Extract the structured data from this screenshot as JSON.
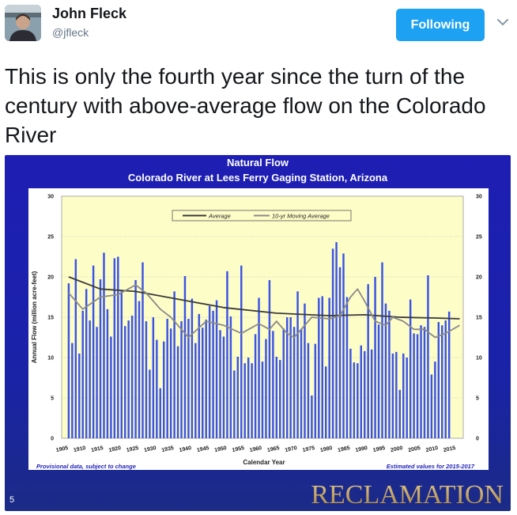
{
  "tweet": {
    "user_name": "John Fleck",
    "handle": "@jfleck",
    "follow_label": "Following",
    "text": "This is only the fourth year since the turn of the century with above-average flow on the Colorado River"
  },
  "icons": {
    "menu": "chevron-down-icon"
  },
  "slide": {
    "slide_number": "5",
    "brand": "RECLAMATION",
    "footnote_left": "Provisional data, subject to change",
    "footnote_right": "Estimated values for 2015-2017"
  },
  "colors": {
    "accent": "#1da1f2",
    "slide_bg": "#1e1eb4",
    "plot_bg": "#fdfdc8",
    "bar": "#3b53e6",
    "average_line": "#3a3a3a",
    "moving_avg_line": "#8a8a8a",
    "brand_gold": "#c9a45a"
  },
  "chart_data": {
    "type": "bar",
    "title": "Natural Flow",
    "subtitle": "Colorado River at Lees Ferry Gaging Station, Arizona",
    "xlabel": "Calendar Year",
    "ylabel": "Annual Flow (million acre-feet)",
    "ylim": [
      0,
      30
    ],
    "yticks": [
      0,
      5,
      10,
      15,
      20,
      25,
      30
    ],
    "xticks": [
      1905,
      1910,
      1915,
      1920,
      1925,
      1930,
      1935,
      1940,
      1945,
      1950,
      1955,
      1960,
      1965,
      1970,
      1975,
      1980,
      1985,
      1990,
      1995,
      2000,
      2005,
      2010,
      2015
    ],
    "grid": true,
    "legend": "top-center",
    "start_year": 1906,
    "values": [
      19.2,
      11.8,
      22.2,
      10.5,
      15.8,
      18.5,
      14.6,
      21.4,
      13.8,
      19.7,
      23.0,
      16.0,
      12.6,
      22.3,
      22.5,
      18.3,
      13.9,
      14.6,
      15.2,
      19.6,
      17.0,
      21.8,
      14.5,
      8.5,
      15.0,
      12.2,
      6.2,
      12.0,
      14.8,
      13.6,
      18.2,
      11.4,
      14.5,
      20.1,
      14.8,
      17.3,
      11.8,
      15.4,
      13.7,
      14.7,
      16.4,
      15.8,
      17.1,
      13.4,
      12.6,
      20.7,
      15.1,
      8.4,
      10.1,
      21.4,
      9.3,
      10.0,
      9.3,
      12.9,
      17.4,
      9.5,
      12.3,
      19.6,
      13.3,
      10.1,
      9.7,
      13.6,
      15.0,
      15.0,
      13.8,
      18.2,
      13.5,
      16.7,
      11.8,
      5.3,
      11.7,
      17.4,
      17.6,
      8.9,
      17.4,
      23.5,
      24.3,
      21.2,
      22.9,
      17.5,
      11.1,
      9.4,
      9.3,
      11.5,
      10.8,
      19.1,
      11.0,
      20.0,
      14.1,
      21.8,
      16.7,
      15.8,
      10.5,
      10.7,
      6.0,
      10.5,
      10.0,
      17.2,
      13.0,
      12.9,
      14.0,
      13.8,
      20.2,
      7.9,
      9.5,
      14.4,
      14.0,
      14.6,
      15.7
    ],
    "estimated_from_index": 109,
    "series": [
      {
        "name": "Average",
        "type": "line",
        "x": [
          1906,
          1915,
          1925,
          1940,
          1950,
          1965,
          1980,
          1990,
          2000,
          2010,
          2017
        ],
        "values": [
          20.0,
          18.5,
          18.2,
          17.0,
          16.2,
          15.5,
          15.2,
          15.3,
          15.0,
          14.9,
          14.8
        ]
      },
      {
        "name": "10-yr Moving Average",
        "type": "line",
        "x": [
          1906,
          1910,
          1915,
          1920,
          1925,
          1928,
          1932,
          1935,
          1938,
          1940,
          1945,
          1950,
          1955,
          1960,
          1963,
          1965,
          1968,
          1970,
          1975,
          1980,
          1983,
          1986,
          1988,
          1990,
          1993,
          1996,
          1998,
          2001,
          2004,
          2007,
          2010,
          2013,
          2017
        ],
        "values": [
          18.0,
          16.0,
          17.5,
          17.8,
          19.0,
          18.0,
          16.0,
          15.0,
          13.5,
          12.5,
          14.5,
          14.0,
          13.0,
          14.2,
          13.5,
          14.5,
          13.0,
          12.5,
          15.0,
          14.8,
          15.2,
          17.5,
          18.5,
          17.0,
          14.5,
          14.0,
          15.0,
          14.5,
          13.5,
          13.5,
          12.5,
          13.0,
          14.0
        ]
      }
    ]
  }
}
